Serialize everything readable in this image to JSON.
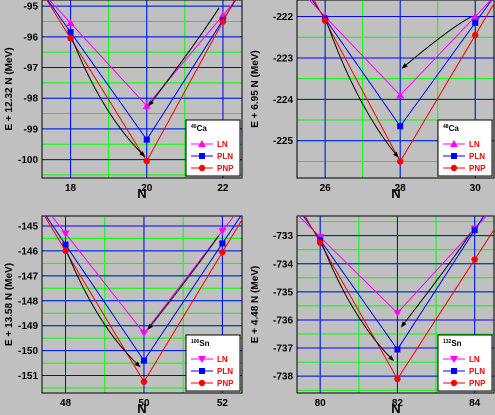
{
  "colors": {
    "background": "#c0c0c0",
    "plot_bg": "#c0c0c0",
    "grid_major": "#0000ff",
    "grid_minor": "#00ff00",
    "LN": "#ff00ff",
    "PLN": "#0000ff",
    "PNP": "#ff0000",
    "legend_text": "#ff0000",
    "arrow": "#000000"
  },
  "chart_data": [
    {
      "type": "line",
      "panel": "top-left",
      "xlabel": "N",
      "ylabel": "E + 12.32 N (MeV)",
      "nucleus": {
        "mass": "40",
        "symbol": "Ca"
      },
      "xlim": [
        17.25,
        22.5
      ],
      "ylim": [
        -100.6,
        -94.8
      ],
      "xticks": [
        18,
        20,
        22
      ],
      "yticks": [
        -95,
        -96,
        -97,
        -98,
        -99,
        -100
      ],
      "legend_position": "bottom-right",
      "x": [
        18,
        20,
        22
      ],
      "series": [
        {
          "name": "LN",
          "marker": "triangle-up",
          "values": [
            -95.55,
            -98.25,
            -95.3
          ]
        },
        {
          "name": "PLN",
          "marker": "square",
          "values": [
            -95.85,
            -99.35,
            -95.45
          ]
        },
        {
          "name": "PNP",
          "marker": "circle",
          "values": [
            -96.05,
            -100.05,
            -95.5
          ]
        }
      ],
      "arrows": [
        {
          "from": [
            18.05,
            -96.1
          ],
          "to": [
            19.95,
            -99.9
          ]
        },
        {
          "from": [
            21.9,
            -95.05
          ],
          "to": [
            20.05,
            -98.25
          ]
        }
      ]
    },
    {
      "type": "line",
      "panel": "top-right",
      "xlabel": "N",
      "ylabel": "E + 6.95 N (MeV)",
      "nucleus": {
        "mass": "48",
        "symbol": "Ca"
      },
      "xlim": [
        25.25,
        30.5
      ],
      "ylim": [
        -225.9,
        -221.6
      ],
      "xticks": [
        26,
        28,
        30
      ],
      "yticks": [
        -222,
        -223,
        -224,
        -225
      ],
      "legend_position": "bottom-right",
      "x": [
        26,
        28,
        30
      ],
      "series": [
        {
          "name": "LN",
          "marker": "triangle-up",
          "values": [
            -222.0,
            -223.9,
            -222.0
          ]
        },
        {
          "name": "PLN",
          "marker": "square",
          "values": [
            -222.05,
            -224.65,
            -222.15
          ]
        },
        {
          "name": "PNP",
          "marker": "circle",
          "values": [
            -222.1,
            -225.5,
            -222.45
          ]
        }
      ],
      "arrows": [
        {
          "from": [
            26.05,
            -222.15
          ],
          "to": [
            27.95,
            -225.4
          ]
        },
        {
          "from": [
            29.9,
            -222.0
          ],
          "to": [
            28.05,
            -223.25
          ]
        }
      ]
    },
    {
      "type": "line",
      "panel": "bottom-left",
      "xlabel": "N",
      "ylabel": "E + 13.58 N (MeV)",
      "nucleus": {
        "mass": "100",
        "symbol": "Sn"
      },
      "xlim": [
        47.4,
        52.5
      ],
      "ylim": [
        -151.7,
        -144.6
      ],
      "xticks": [
        48,
        50,
        52
      ],
      "yticks": [
        -145,
        -146,
        -147,
        -148,
        -149,
        -150,
        -151
      ],
      "legend_position": "bottom-right",
      "x": [
        48,
        50,
        52
      ],
      "series": [
        {
          "name": "LN",
          "marker": "triangle-down",
          "values": [
            -145.3,
            -149.3,
            -145.2
          ]
        },
        {
          "name": "PLN",
          "marker": "square",
          "values": [
            -145.75,
            -150.4,
            -145.7
          ]
        },
        {
          "name": "PNP",
          "marker": "circle",
          "values": [
            -146.0,
            -151.25,
            -146.05
          ]
        }
      ],
      "arrows": [
        {
          "from": [
            48.05,
            -146.1
          ],
          "to": [
            49.9,
            -150.65
          ]
        },
        {
          "from": [
            51.9,
            -145.4
          ],
          "to": [
            50.1,
            -149.15
          ]
        }
      ]
    },
    {
      "type": "line",
      "panel": "bottom-right",
      "xlabel": "N",
      "ylabel": "E + 4.48 N (MeV)",
      "nucleus": {
        "mass": "132",
        "symbol": "Sn"
      },
      "xlim": [
        79.4,
        84.5
      ],
      "ylim": [
        -738.6,
        -732.3
      ],
      "xticks": [
        80,
        82,
        84
      ],
      "yticks": [
        -733,
        -734,
        -735,
        -736,
        -737,
        -738
      ],
      "legend_position": "bottom-right",
      "x": [
        80,
        82,
        84
      ],
      "series": [
        {
          "name": "LN",
          "marker": "triangle-down",
          "values": [
            -733.05,
            -735.75,
            -732.75
          ]
        },
        {
          "name": "PLN",
          "marker": "square",
          "values": [
            -733.15,
            -737.05,
            -732.8
          ]
        },
        {
          "name": "PNP",
          "marker": "circle",
          "values": [
            -733.25,
            -738.1,
            -733.85
          ]
        }
      ],
      "arrows": [
        {
          "from": [
            80.05,
            -733.3
          ],
          "to": [
            81.9,
            -737.45
          ]
        },
        {
          "from": [
            83.9,
            -732.9
          ],
          "to": [
            82.1,
            -736.25
          ]
        }
      ]
    }
  ]
}
